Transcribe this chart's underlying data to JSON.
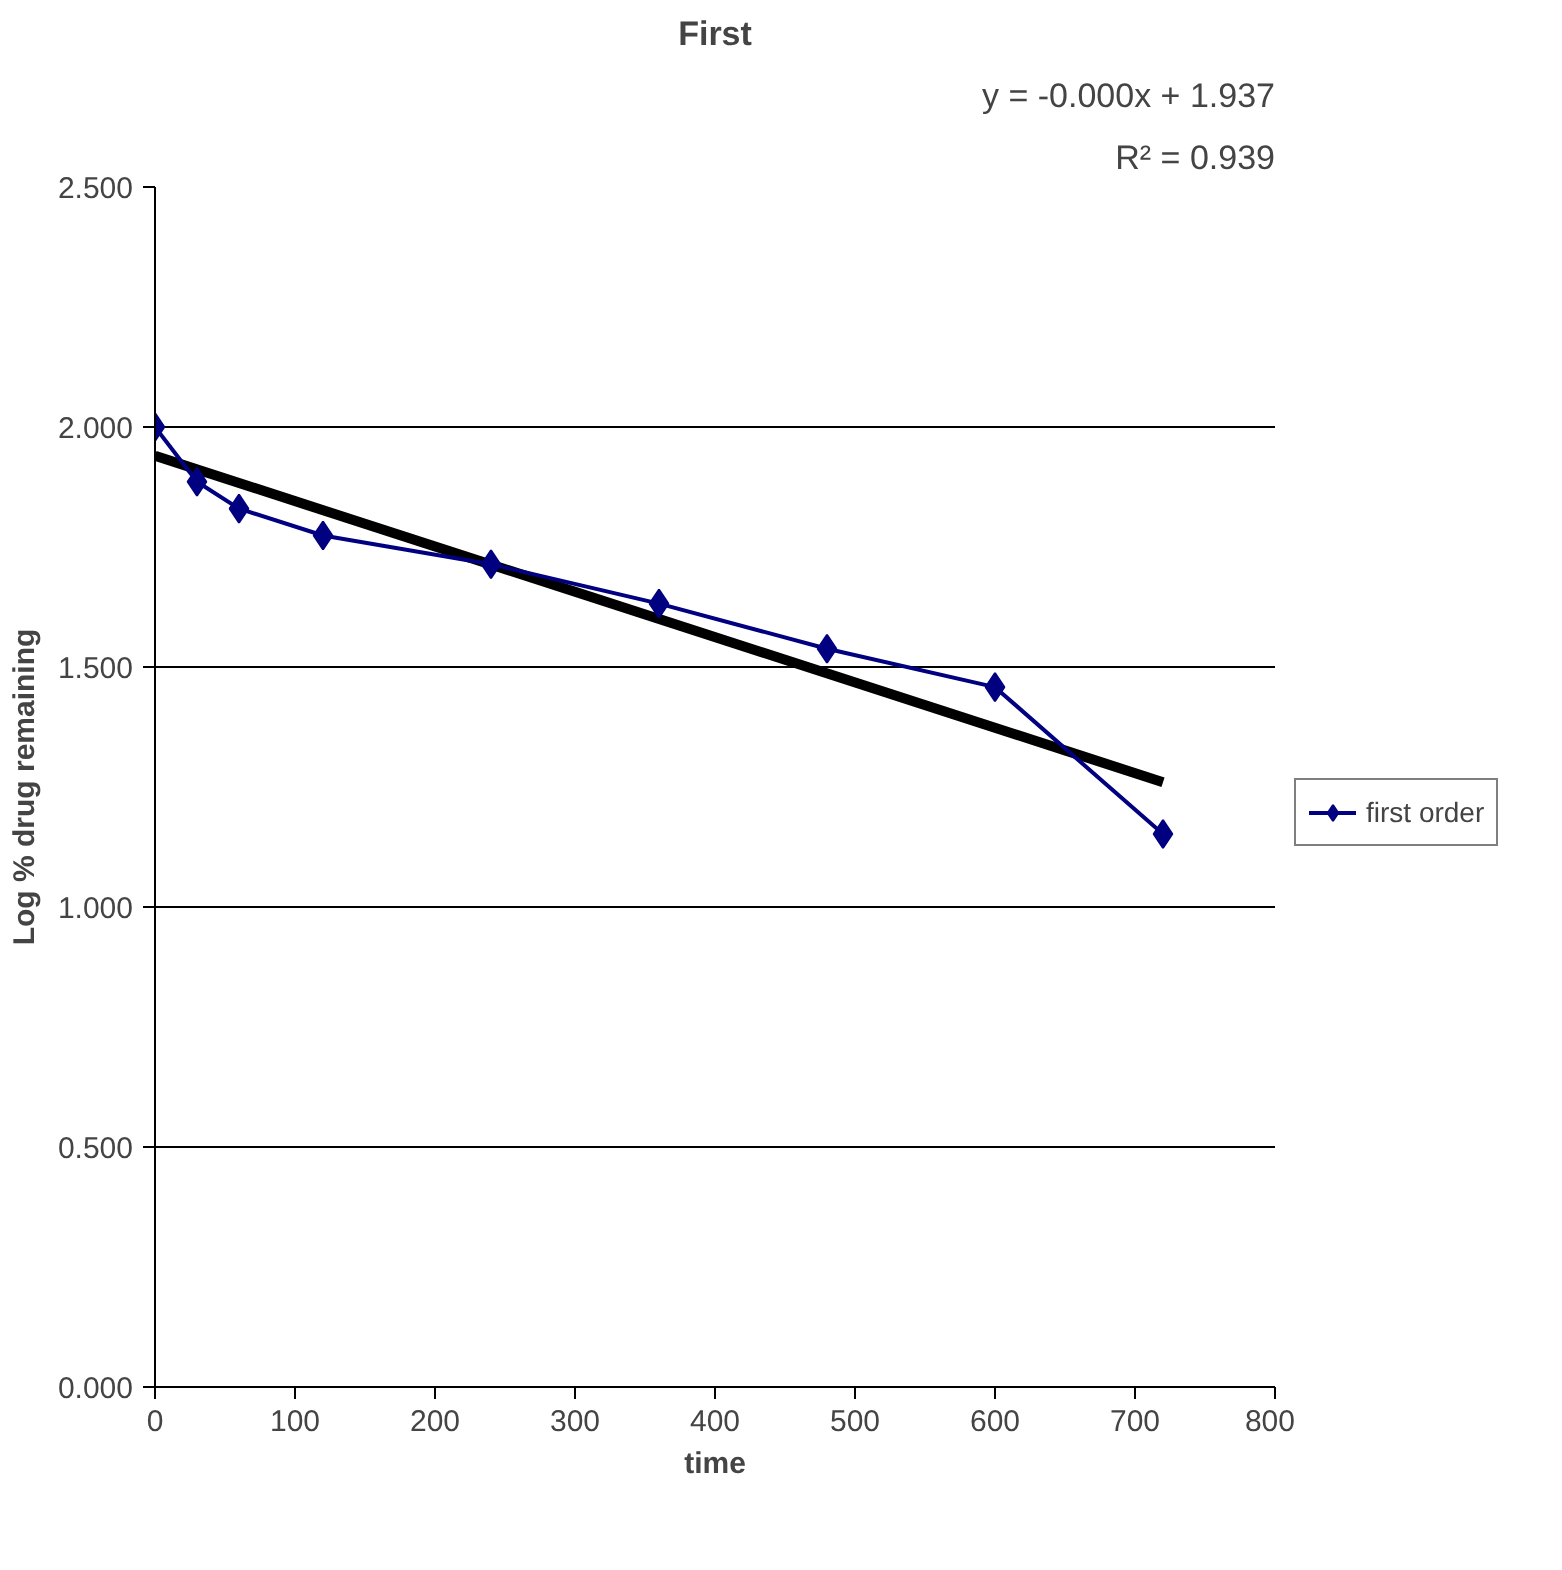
{
  "chart_data": {
    "type": "line",
    "title": "First",
    "xlabel": "time",
    "ylabel": "Log % drug remaining",
    "annotations": [
      "y = -0.000x + 1.937",
      "R² = 0.939"
    ],
    "xlim": [
      0,
      800
    ],
    "xticks": [
      0,
      100,
      200,
      300,
      400,
      500,
      600,
      700,
      800
    ],
    "ylim": [
      0,
      2.5
    ],
    "yticks": [
      {
        "value": 0,
        "label": "0.000"
      },
      {
        "value": 0.5,
        "label": "0.500"
      },
      {
        "value": 1,
        "label": "1.000"
      },
      {
        "value": 1.5,
        "label": "1.500"
      },
      {
        "value": 2,
        "label": "2.000"
      },
      {
        "value": 2.5,
        "label": "2.500"
      }
    ],
    "grid": "y",
    "legend": "right",
    "series": [
      {
        "name": "first order",
        "color": "#000080",
        "marker": "diamond",
        "x": [
          0,
          30,
          60,
          120,
          240,
          360,
          480,
          600,
          720
        ],
        "values": [
          2.0,
          1.886,
          1.83,
          1.774,
          1.714,
          1.632,
          1.538,
          1.458,
          1.152
        ]
      },
      {
        "type": "line",
        "color": "#000000",
        "marker": "none",
        "x": [
          0,
          720
        ],
        "values": [
          1.94,
          1.26
        ]
      }
    ]
  }
}
